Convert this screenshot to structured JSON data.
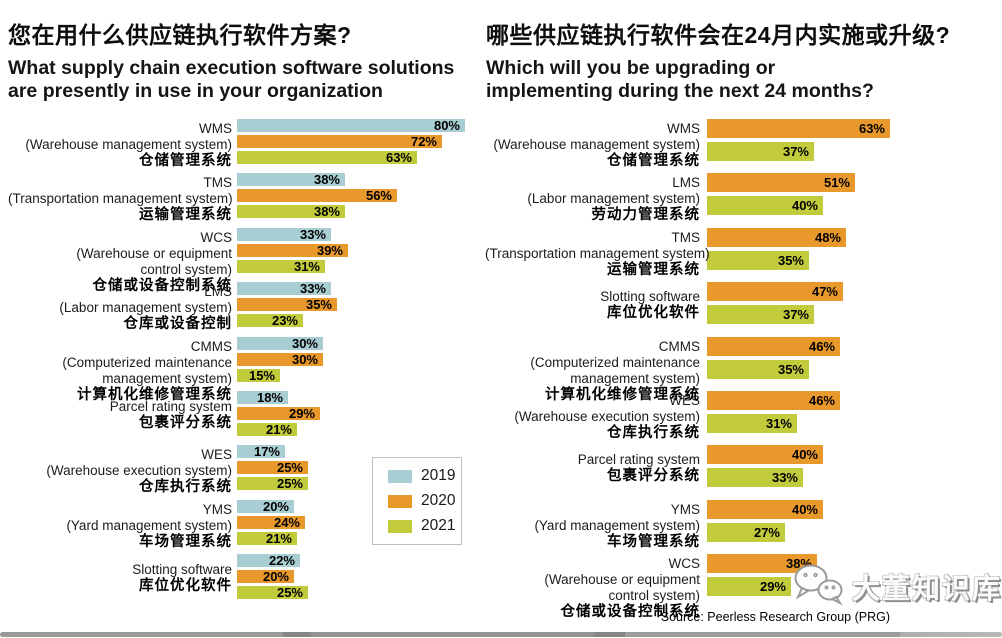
{
  "chart_data": [
    {
      "type": "bar",
      "orientation": "horizontal",
      "unit": "%",
      "xlim": [
        0,
        100
      ],
      "grid": false,
      "legend_position": "lower-middle-boxed",
      "title_zh": "您在用什么供应链执行软件方案?",
      "title_en_lines": [
        "What supply chain execution software solutions",
        "are presently in use in your organization"
      ],
      "series": [
        "2019",
        "2020",
        "2021"
      ],
      "colors": [
        "#a8cdd2",
        "#e9982c",
        "#c2cb3c"
      ],
      "categories": [
        {
          "lines": [
            "WMS",
            "(Warehouse management system)"
          ],
          "zh": "仓储管理系统",
          "values": [
            80,
            72,
            63
          ]
        },
        {
          "lines": [
            "TMS",
            "(Transportation management system)"
          ],
          "zh": "运输管理系统",
          "values": [
            38,
            56,
            38
          ]
        },
        {
          "lines": [
            "WCS",
            "(Warehouse or equipment",
            "control system)"
          ],
          "zh": "仓储或设备控制系统",
          "values": [
            33,
            39,
            31
          ]
        },
        {
          "lines": [
            "LMS",
            "(Labor management system)"
          ],
          "zh": "仓库或设备控制",
          "values": [
            33,
            35,
            23
          ]
        },
        {
          "lines": [
            "CMMS",
            "(Computerized maintenance",
            "management system)"
          ],
          "zh": "计算机化维修管理系统",
          "values": [
            30,
            30,
            15
          ]
        },
        {
          "lines": [
            "Parcel rating system"
          ],
          "zh": "包裹评分系统",
          "values": [
            18,
            29,
            21
          ]
        },
        {
          "lines": [
            "WES",
            "(Warehouse execution system)"
          ],
          "zh": "仓库执行系统",
          "values": [
            17,
            25,
            25
          ]
        },
        {
          "lines": [
            "YMS",
            "(Yard management system)"
          ],
          "zh": "车场管理系统",
          "values": [
            20,
            24,
            21
          ]
        },
        {
          "lines": [
            "Slotting software"
          ],
          "zh": "库位优化软件",
          "values": [
            22,
            20,
            25
          ]
        }
      ]
    },
    {
      "type": "bar",
      "orientation": "horizontal",
      "unit": "%",
      "xlim": [
        0,
        100
      ],
      "grid": false,
      "title_zh": "哪些供应链执行软件会在24月内实施或升级?",
      "title_en_lines": [
        "Which will you be upgrading or",
        "implementing during the next 24 months?"
      ],
      "series": [
        "2020",
        "2021"
      ],
      "colors": [
        "#e9982c",
        "#c2cb3c"
      ],
      "categories": [
        {
          "lines": [
            "WMS",
            "(Warehouse management system)"
          ],
          "zh": "仓储管理系统",
          "values": [
            63,
            37
          ]
        },
        {
          "lines": [
            "LMS",
            "(Labor management system)"
          ],
          "zh": "劳动力管理系统",
          "values": [
            51,
            40
          ]
        },
        {
          "lines": [
            "TMS",
            "(Transportation management system)"
          ],
          "zh": "运输管理系统",
          "values": [
            48,
            35
          ]
        },
        {
          "lines": [
            "Slotting software"
          ],
          "zh": "库位优化软件",
          "values": [
            47,
            37
          ]
        },
        {
          "lines": [
            "CMMS",
            "(Computerized maintenance",
            "management system)"
          ],
          "zh": "计算机化维修管理系统",
          "values": [
            46,
            35
          ]
        },
        {
          "lines": [
            "WES",
            "(Warehouse execution system)"
          ],
          "zh": "仓库执行系统",
          "values": [
            46,
            31
          ]
        },
        {
          "lines": [
            "Parcel rating system"
          ],
          "zh": "包裹评分系统",
          "values": [
            40,
            33
          ]
        },
        {
          "lines": [
            "YMS",
            "(Yard management system)"
          ],
          "zh": "车场管理系统",
          "values": [
            40,
            27
          ]
        },
        {
          "lines": [
            "WCS",
            "(Warehouse or equipment",
            "control system)"
          ],
          "zh": "仓储或设备控制系统",
          "values": [
            38,
            29
          ]
        }
      ]
    }
  ],
  "legend": {
    "items": [
      {
        "label": "2019",
        "color": "#a8cdd2"
      },
      {
        "label": "2020",
        "color": "#e9982c"
      },
      {
        "label": "2021",
        "color": "#c2cb3c"
      }
    ]
  },
  "source": "Source: Peerless Research Group (PRG)",
  "watermark": {
    "icon": "wechat-icon",
    "text": "大董知识库"
  }
}
